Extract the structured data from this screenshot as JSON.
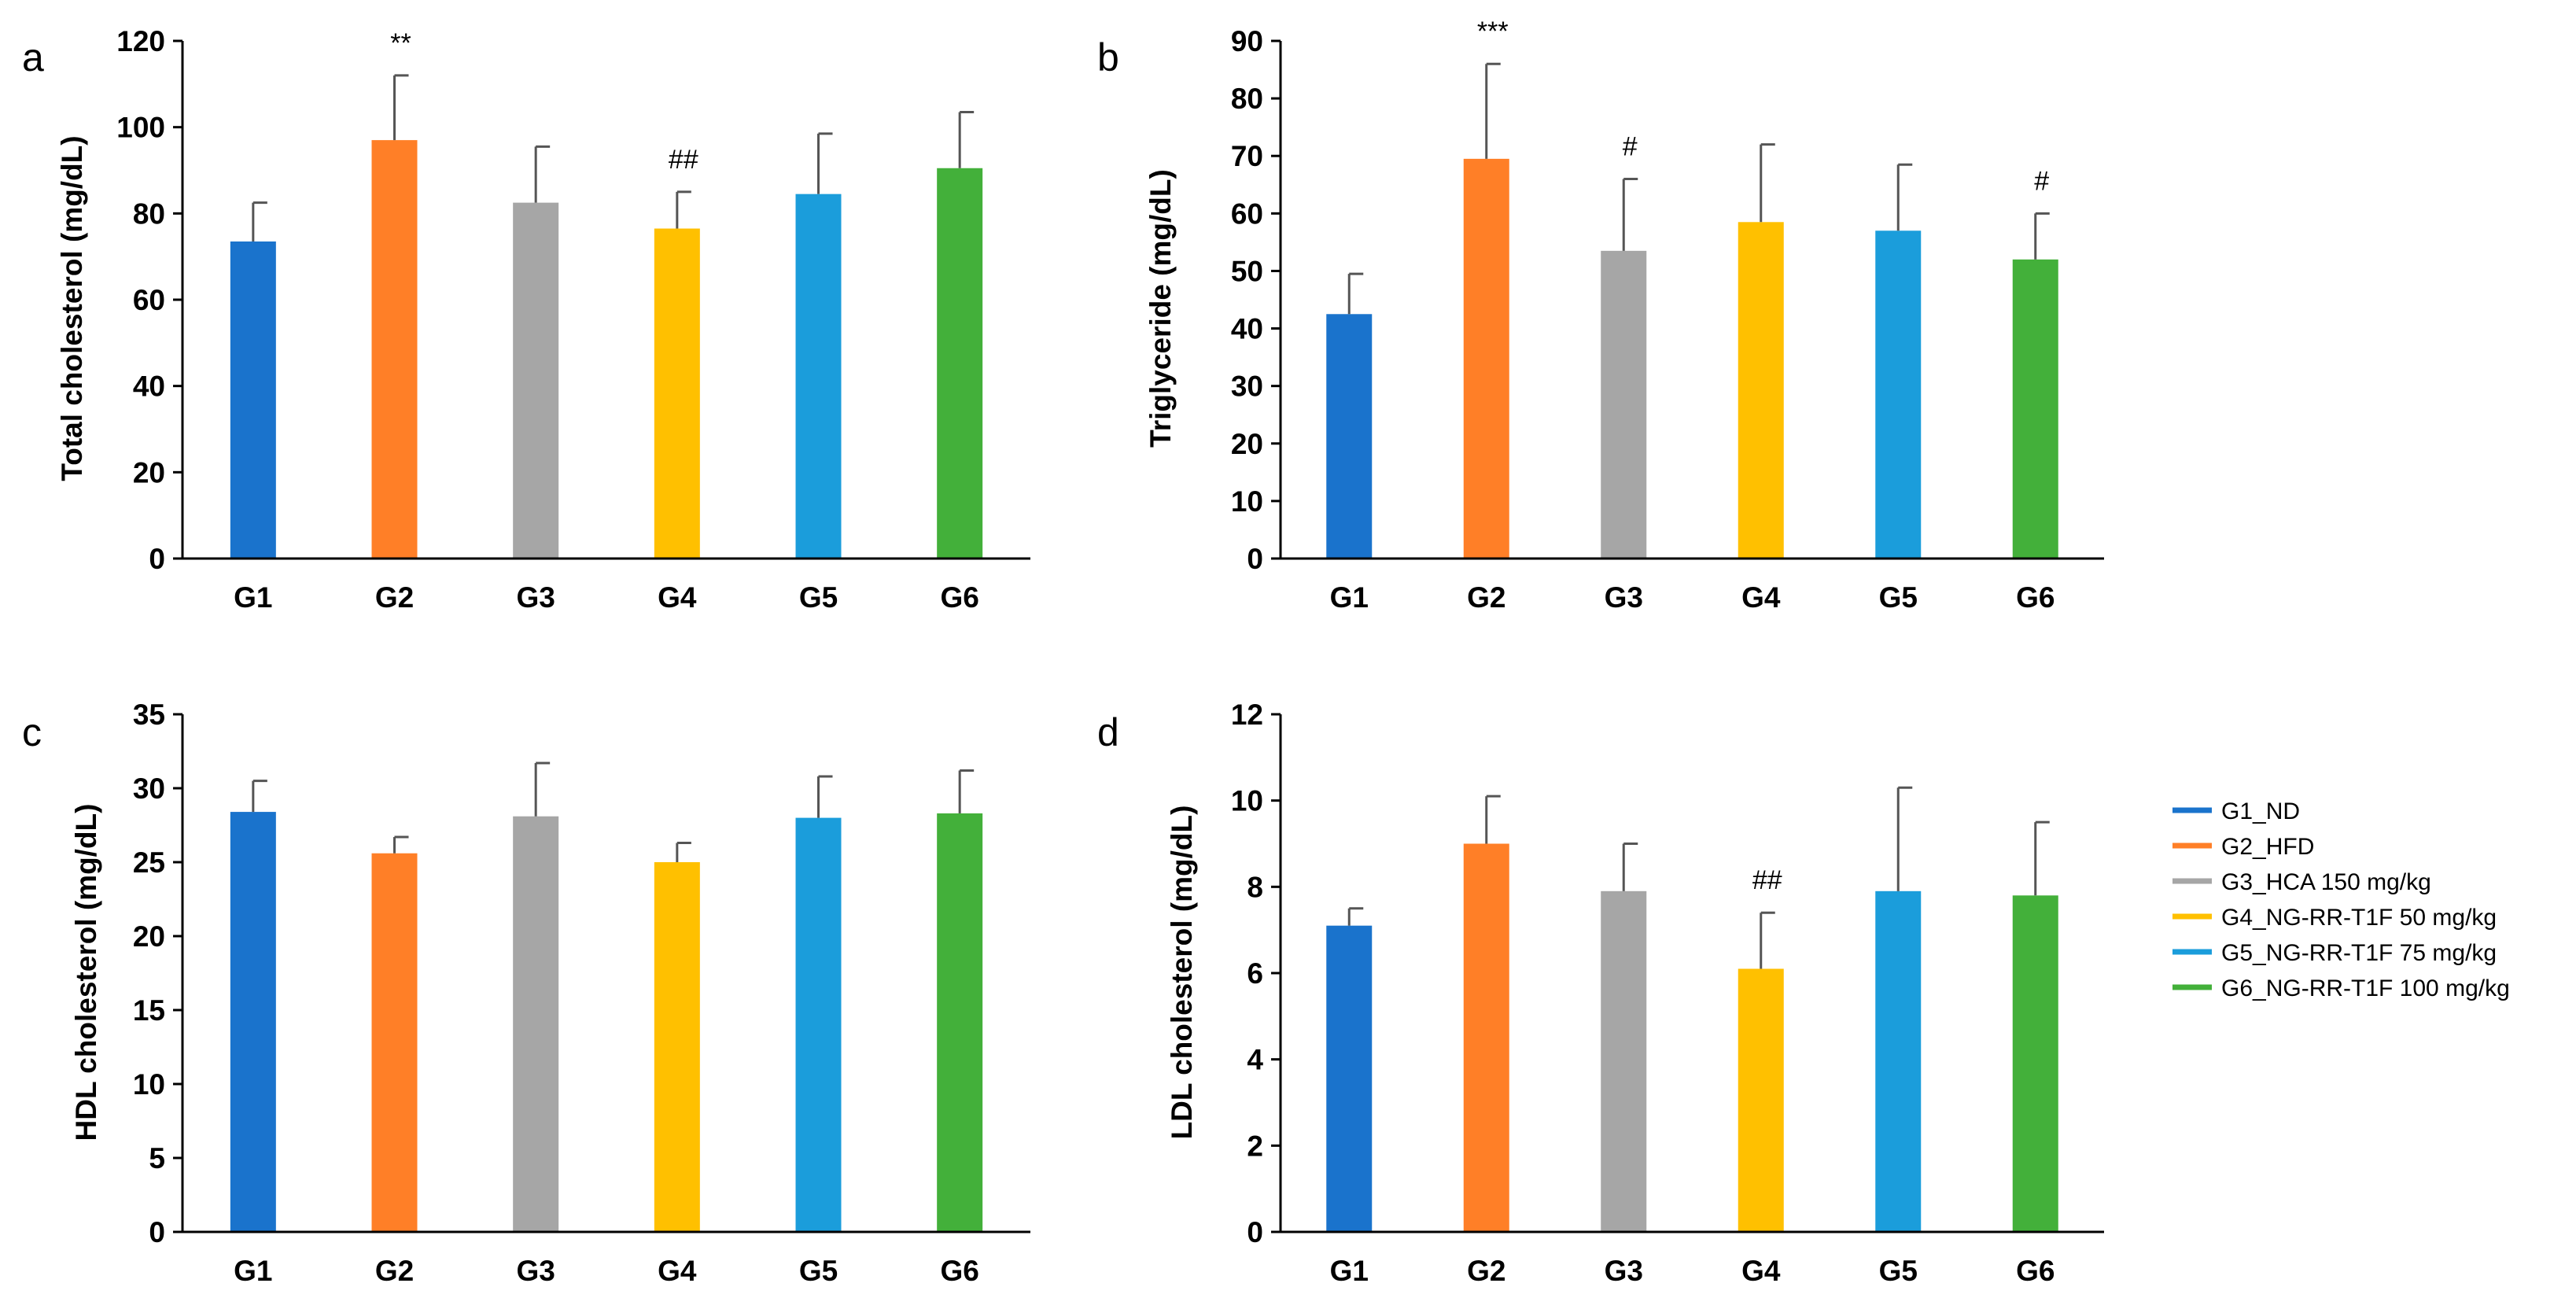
{
  "colors": {
    "G1": "#1a73cc",
    "G2": "#ff7f27",
    "G3": "#a6a6a6",
    "G4": "#ffc000",
    "G5": "#1b9ddb",
    "G6": "#43b03a"
  },
  "legend": [
    {
      "key": "G1",
      "label": "G1_ND"
    },
    {
      "key": "G2",
      "label": "G2_HFD"
    },
    {
      "key": "G3",
      "label": "G3_HCA 150 mg/kg"
    },
    {
      "key": "G4",
      "label": "G4_NG-RR-T1F 50 mg/kg"
    },
    {
      "key": "G5",
      "label": "G5_NG-RR-T1F 75 mg/kg"
    },
    {
      "key": "G6",
      "label": "G6_NG-RR-T1F 100 mg/kg"
    }
  ],
  "chart_data": [
    {
      "panel": "a",
      "type": "bar",
      "ylabel": "Total cholesterol (mg/dL)",
      "ylim": [
        0,
        120
      ],
      "yticks": [
        "0",
        "20",
        "40",
        "60",
        "80",
        "100",
        "120"
      ],
      "categories": [
        "G1",
        "G2",
        "G3",
        "G4",
        "G5",
        "G6"
      ],
      "values": [
        73.5,
        97,
        82.5,
        76.5,
        84.5,
        90.5
      ],
      "errors": [
        9,
        15,
        13,
        8.5,
        14,
        13
      ],
      "annotations": [
        "",
        "**",
        "",
        "##",
        "",
        ""
      ]
    },
    {
      "panel": "b",
      "type": "bar",
      "ylabel": "Triglyceride (mg/dL)",
      "ylim": [
        0,
        90
      ],
      "yticks": [
        "0",
        "10",
        "20",
        "30",
        "40",
        "50",
        "60",
        "70",
        "80",
        "90"
      ],
      "categories": [
        "G1",
        "G2",
        "G3",
        "G4",
        "G5",
        "G6"
      ],
      "values": [
        42.5,
        69.5,
        53.5,
        58.5,
        57,
        52
      ],
      "errors": [
        7,
        16.5,
        12.5,
        13.5,
        11.5,
        8
      ],
      "annotations": [
        "",
        "***",
        "#",
        "",
        "",
        "#"
      ]
    },
    {
      "panel": "c",
      "type": "bar",
      "ylabel": "HDL cholesterol (mg/dL)",
      "ylim": [
        0,
        35
      ],
      "yticks": [
        "0",
        "5",
        "10",
        "15",
        "20",
        "25",
        "30",
        "35"
      ],
      "categories": [
        "G1",
        "G2",
        "G3",
        "G4",
        "G5",
        "G6"
      ],
      "values": [
        28.4,
        25.6,
        28.1,
        25,
        28,
        28.3
      ],
      "errors": [
        2.1,
        1.1,
        3.6,
        1.3,
        2.8,
        2.9
      ],
      "annotations": [
        "",
        "",
        "",
        "",
        "",
        ""
      ]
    },
    {
      "panel": "d",
      "type": "bar",
      "ylabel": "LDL cholesterol (mg/dL)",
      "ylim": [
        0,
        12
      ],
      "yticks": [
        "0",
        "2",
        "4",
        "6",
        "8",
        "10",
        "12"
      ],
      "categories": [
        "G1",
        "G2",
        "G3",
        "G4",
        "G5",
        "G6"
      ],
      "values": [
        7.1,
        9,
        7.9,
        6.1,
        7.9,
        7.8
      ],
      "errors": [
        0.4,
        1.1,
        1.1,
        1.3,
        2.4,
        1.7
      ],
      "annotations": [
        "",
        "",
        "",
        "##",
        "",
        ""
      ]
    }
  ]
}
